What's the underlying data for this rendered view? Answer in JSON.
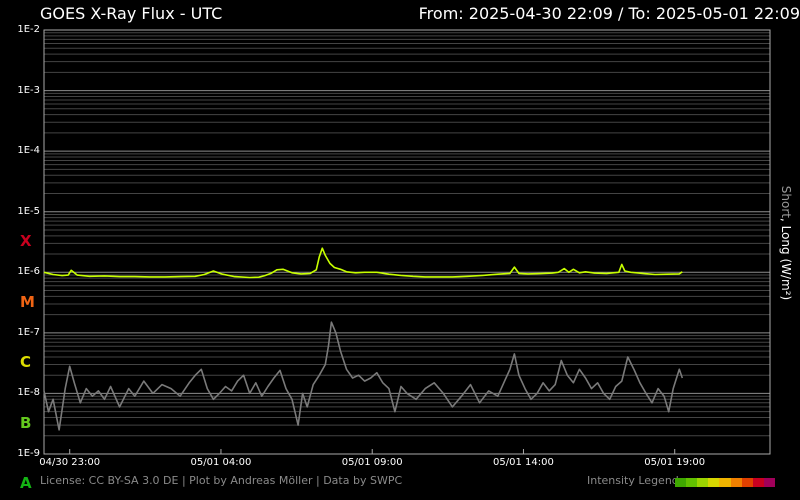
{
  "header": {
    "title": "GOES X-Ray Flux - UTC",
    "range": "From: 2025-04-30 22:09  /  To: 2025-05-01 22:09"
  },
  "footer": {
    "credits": "License: CC BY-SA 3.0 DE | Plot by Andreas Möller | Data by SWPC",
    "intensity_label": "Intensity Legend",
    "intensity_colors": [
      "#3fa800",
      "#62c000",
      "#9cd400",
      "#d6d600",
      "#f0b400",
      "#f08000",
      "#e04000",
      "#c80020",
      "#a0005a"
    ]
  },
  "chart_data": {
    "type": "line",
    "title": "GOES X-Ray Flux - UTC",
    "ylabel_short": "Short",
    "ylabel_rest": ", Long (W/m²)",
    "yscale": "log",
    "ylim": [
      1e-09,
      0.01
    ],
    "ytick_labels": [
      "1E-2",
      "1E-3",
      "1E-4",
      "1E-5",
      "1E-6",
      "1E-7",
      "1E-8",
      "1E-9"
    ],
    "flare_classes": [
      {
        "label": "X",
        "color": "#c8001e",
        "at": 3.5
      },
      {
        "label": "M",
        "color": "#f06414",
        "at": 4.5
      },
      {
        "label": "C",
        "color": "#dcdc00",
        "at": 5.5
      },
      {
        "label": "B",
        "color": "#64c81e",
        "at": 6.5
      },
      {
        "label": "A",
        "color": "#14b414",
        "at": 7.5
      }
    ],
    "xlim_hours": [
      0,
      24
    ],
    "xticks": [
      {
        "label": "04/30 23:00",
        "h": 0.85
      },
      {
        "label": "05/01 04:00",
        "h": 5.85
      },
      {
        "label": "05/01 09:00",
        "h": 10.85
      },
      {
        "label": "05/01 14:00",
        "h": 15.85
      },
      {
        "label": "05/01 19:00",
        "h": 20.85
      }
    ],
    "grid": true,
    "series": [
      {
        "name": "Long",
        "color": "#c8ff00",
        "x_hours": [
          0,
          0.3,
          0.6,
          0.8,
          0.9,
          1.1,
          1.5,
          2,
          2.5,
          3,
          3.5,
          4,
          4.5,
          5,
          5.3,
          5.6,
          5.9,
          6.3,
          6.8,
          7.1,
          7.3,
          7.5,
          7.7,
          7.9,
          8.2,
          8.5,
          8.8,
          9,
          9.1,
          9.2,
          9.3,
          9.45,
          9.6,
          9.8,
          10,
          10.3,
          10.6,
          11,
          11.4,
          11.8,
          12.2,
          12.6,
          13,
          13.5,
          14,
          14.5,
          15,
          15.4,
          15.55,
          15.7,
          16,
          16.4,
          16.8,
          17,
          17.2,
          17.35,
          17.5,
          17.7,
          17.9,
          18.2,
          18.6,
          19,
          19.1,
          19.2,
          19.4,
          19.8,
          20.2,
          20.6,
          21,
          21.1
        ],
        "y": [
          1e-06,
          9.2e-07,
          8.8e-07,
          9e-07,
          1.08e-06,
          9e-07,
          8.6e-07,
          8.7e-07,
          8.5e-07,
          8.5e-07,
          8.4e-07,
          8.4e-07,
          8.5e-07,
          8.6e-07,
          9.2e-07,
          1.05e-06,
          9.3e-07,
          8.5e-07,
          8.2e-07,
          8.3e-07,
          8.8e-07,
          9.6e-07,
          1.1e-06,
          1.12e-06,
          9.8e-07,
          9.4e-07,
          9.6e-07,
          1.1e-06,
          1.8e-06,
          2.5e-06,
          1.9e-06,
          1.4e-06,
          1.2e-06,
          1.12e-06,
          1.02e-06,
          9.8e-07,
          1e-06,
          1e-06,
          9.3e-07,
          8.9e-07,
          8.6e-07,
          8.4e-07,
          8.4e-07,
          8.4e-07,
          8.6e-07,
          8.9e-07,
          9.3e-07,
          9.6e-07,
          1.22e-06,
          9.6e-07,
          9.4e-07,
          9.5e-07,
          9.7e-07,
          1e-06,
          1.15e-06,
          1e-06,
          1.12e-06,
          9.8e-07,
          1.02e-06,
          9.7e-07,
          9.6e-07,
          1e-06,
          1.35e-06,
          1.05e-06,
          1e-06,
          9.6e-07,
          9.2e-07,
          9.3e-07,
          9.4e-07,
          1.02e-06
        ]
      },
      {
        "name": "Short",
        "color": "#7a7a7a",
        "x_hours": [
          0,
          0.15,
          0.3,
          0.5,
          0.7,
          0.85,
          1,
          1.2,
          1.4,
          1.6,
          1.8,
          2,
          2.2,
          2.5,
          2.8,
          3,
          3.3,
          3.6,
          3.9,
          4.2,
          4.5,
          4.8,
          5,
          5.2,
          5.4,
          5.6,
          5.8,
          6,
          6.2,
          6.4,
          6.6,
          6.8,
          7,
          7.2,
          7.4,
          7.6,
          7.8,
          8,
          8.2,
          8.4,
          8.55,
          8.7,
          8.9,
          9.1,
          9.3,
          9.4,
          9.5,
          9.65,
          9.8,
          10,
          10.2,
          10.4,
          10.6,
          10.8,
          11,
          11.2,
          11.4,
          11.6,
          11.8,
          12,
          12.3,
          12.6,
          12.9,
          13.2,
          13.5,
          13.8,
          14.1,
          14.4,
          14.7,
          15,
          15.2,
          15.4,
          15.55,
          15.7,
          15.9,
          16.1,
          16.3,
          16.5,
          16.7,
          16.9,
          17.1,
          17.3,
          17.5,
          17.7,
          17.9,
          18.1,
          18.3,
          18.5,
          18.7,
          18.9,
          19.1,
          19.3,
          19.5,
          19.7,
          19.9,
          20.1,
          20.3,
          20.5,
          20.65,
          20.8,
          21,
          21.1
        ],
        "y": [
          1.1e-08,
          5e-09,
          8e-09,
          2.5e-09,
          1.2e-08,
          2.8e-08,
          1.5e-08,
          7e-09,
          1.2e-08,
          9e-09,
          1.1e-08,
          8e-09,
          1.3e-08,
          6e-09,
          1.2e-08,
          9e-09,
          1.6e-08,
          1e-08,
          1.4e-08,
          1.2e-08,
          9e-09,
          1.5e-08,
          2e-08,
          2.5e-08,
          1.2e-08,
          8e-09,
          1e-08,
          1.3e-08,
          1.1e-08,
          1.6e-08,
          2e-08,
          1e-08,
          1.5e-08,
          9e-09,
          1.3e-08,
          1.8e-08,
          2.4e-08,
          1.2e-08,
          8e-09,
          3e-09,
          1e-08,
          6e-09,
          1.4e-08,
          2e-08,
          3e-08,
          6e-08,
          1.5e-07,
          1e-07,
          5e-08,
          2.5e-08,
          1.8e-08,
          2e-08,
          1.6e-08,
          1.8e-08,
          2.2e-08,
          1.5e-08,
          1.2e-08,
          5e-09,
          1.3e-08,
          1e-08,
          8e-09,
          1.2e-08,
          1.5e-08,
          1e-08,
          6e-09,
          9e-09,
          1.4e-08,
          7e-09,
          1.1e-08,
          9e-09,
          1.5e-08,
          2.5e-08,
          4.5e-08,
          2e-08,
          1.2e-08,
          8e-09,
          1e-08,
          1.5e-08,
          1.1e-08,
          1.4e-08,
          3.5e-08,
          2e-08,
          1.5e-08,
          2.5e-08,
          1.8e-08,
          1.2e-08,
          1.5e-08,
          1e-08,
          8e-09,
          1.3e-08,
          1.6e-08,
          4e-08,
          2.5e-08,
          1.5e-08,
          1e-08,
          7e-09,
          1.2e-08,
          9e-09,
          5e-09,
          1.2e-08,
          2.5e-08,
          1.8e-08
        ]
      }
    ]
  }
}
